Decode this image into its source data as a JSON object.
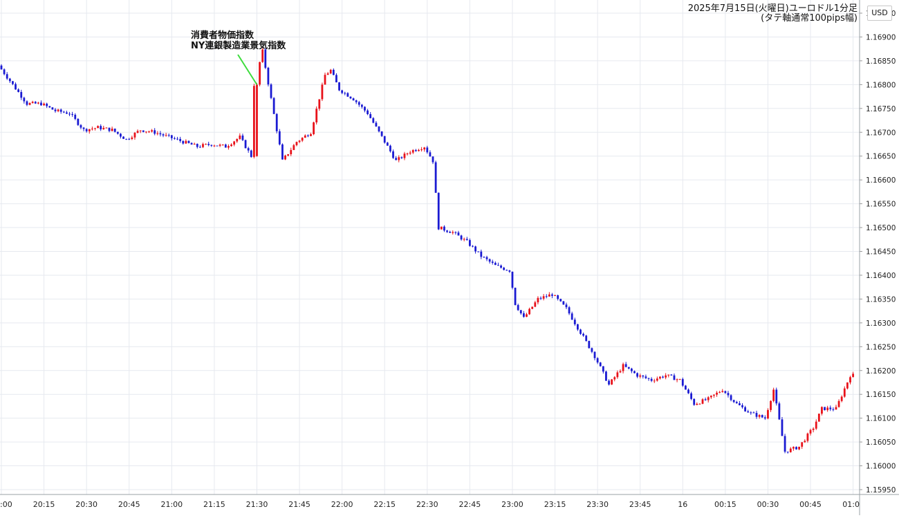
{
  "chart_data": {
    "type": "candlestick",
    "title": "2025年7月15日(火曜日)ユーロドル1分足",
    "subtitle": "(タテ軸通常100pips幅)",
    "currency_label": "USD",
    "ylim": [
      1.1595,
      1.16985
    ],
    "y_ticks": [
      "1.16950",
      "1.16900",
      "1.16850",
      "1.16800",
      "1.16750",
      "1.16700",
      "1.16650",
      "1.16600",
      "1.16550",
      "1.16500",
      "1.16450",
      "1.16400",
      "1.16350",
      "1.16300",
      "1.16250",
      "1.16200",
      "1.16150",
      "1.16100",
      "1.16050",
      "1.16000",
      "1.15950"
    ],
    "x_ticks": [
      ":00",
      "20:15",
      "20:30",
      "20:45",
      "21:00",
      "21:15",
      "21:30",
      "21:45",
      "22:00",
      "22:15",
      "22:30",
      "22:45",
      "23:00",
      "23:15",
      "23:30",
      "23:45",
      "16",
      "00:15",
      "00:30",
      "00:45",
      "01:0"
    ],
    "annotation": {
      "lines": [
        "消費者物価指数",
        "NY連銀製造業景気指数"
      ],
      "time": "21:30"
    },
    "colors": {
      "up": "#e8121a",
      "down": "#1a1ad2",
      "grid": "#e6e9ef",
      "pointer": "#3ddc3d"
    },
    "series_path": [
      [
        "20:00",
        1.1684
      ],
      [
        "20:05",
        1.168
      ],
      [
        "20:10",
        1.1676
      ],
      [
        "20:15",
        1.1676
      ],
      [
        "20:20",
        1.16745
      ],
      [
        "20:25",
        1.1674
      ],
      [
        "20:30",
        1.16705
      ],
      [
        "20:35",
        1.1671
      ],
      [
        "20:40",
        1.16705
      ],
      [
        "20:45",
        1.16685
      ],
      [
        "20:50",
        1.16705
      ],
      [
        "20:55",
        1.167
      ],
      [
        "21:00",
        1.1669
      ],
      [
        "21:05",
        1.1668
      ],
      [
        "21:10",
        1.1667
      ],
      [
        "21:15",
        1.16675
      ],
      [
        "21:20",
        1.1667
      ],
      [
        "21:25",
        1.1669
      ],
      [
        "21:29",
        1.1665
      ],
      [
        "21:30",
        1.168
      ],
      [
        "21:33",
        1.1687
      ],
      [
        "21:36",
        1.1677
      ],
      [
        "21:40",
        1.1664
      ],
      [
        "21:45",
        1.1668
      ],
      [
        "21:50",
        1.167
      ],
      [
        "21:55",
        1.1682
      ],
      [
        "21:57",
        1.1683
      ],
      [
        "22:00",
        1.1679
      ],
      [
        "22:05",
        1.1677
      ],
      [
        "22:10",
        1.1674
      ],
      [
        "22:15",
        1.1669
      ],
      [
        "22:20",
        1.1664
      ],
      [
        "22:25",
        1.1666
      ],
      [
        "22:30",
        1.1667
      ],
      [
        "22:33",
        1.1664
      ],
      [
        "22:35",
        1.165
      ],
      [
        "22:40",
        1.1649
      ],
      [
        "22:45",
        1.1647
      ],
      [
        "22:50",
        1.1644
      ],
      [
        "22:55",
        1.1642
      ],
      [
        "23:00",
        1.1641
      ],
      [
        "23:02",
        1.1634
      ],
      [
        "23:05",
        1.1631
      ],
      [
        "23:10",
        1.1635
      ],
      [
        "23:15",
        1.1636
      ],
      [
        "23:20",
        1.1633
      ],
      [
        "23:25",
        1.1628
      ],
      [
        "23:30",
        1.1623
      ],
      [
        "23:35",
        1.1617
      ],
      [
        "23:40",
        1.1621
      ],
      [
        "23:45",
        1.1619
      ],
      [
        "23:50",
        1.1618
      ],
      [
        "23:55",
        1.1619
      ],
      [
        "24:00",
        1.1618
      ],
      [
        "24:05",
        1.1613
      ],
      [
        "24:10",
        1.1614
      ],
      [
        "24:15",
        1.1616
      ],
      [
        "24:20",
        1.1613
      ],
      [
        "24:25",
        1.1611
      ],
      [
        "24:30",
        1.161
      ],
      [
        "24:33",
        1.1616
      ],
      [
        "24:37",
        1.1603
      ],
      [
        "24:42",
        1.1604
      ],
      [
        "24:47",
        1.1608
      ],
      [
        "24:50",
        1.1612
      ],
      [
        "24:55",
        1.1612
      ],
      [
        "25:00",
        1.1619
      ]
    ]
  }
}
